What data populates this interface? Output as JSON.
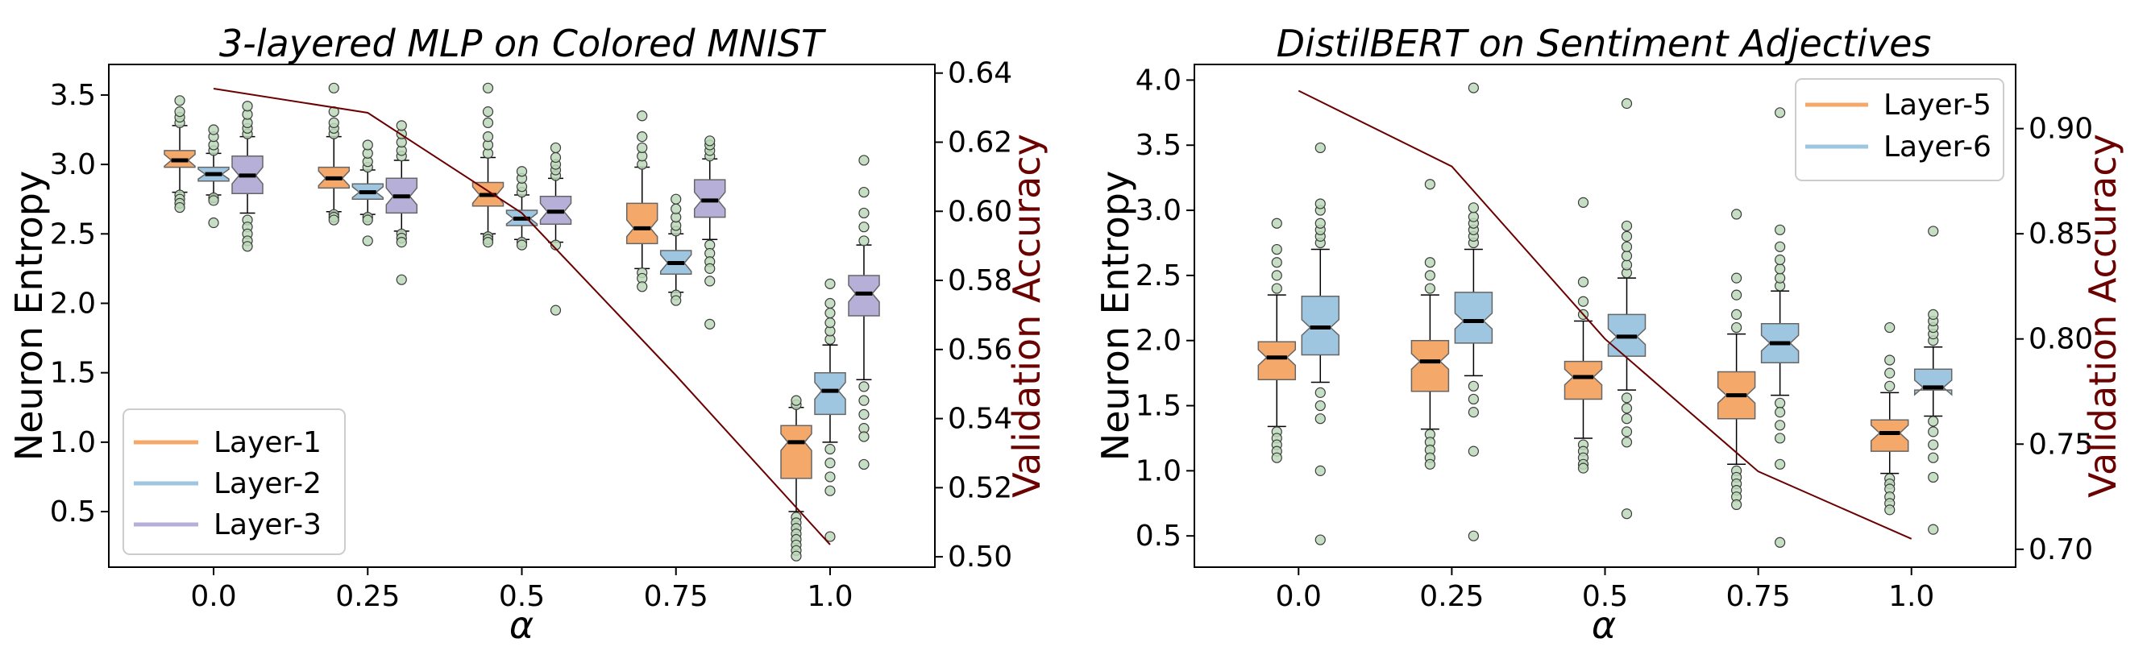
{
  "chart_data": [
    {
      "type": "box",
      "title": "3-layered MLP on Colored MNIST",
      "xlabel": "α",
      "ylabel": "Neuron Entropy",
      "ylabel_right": "Validation Accuracy",
      "categories": [
        "0.0",
        "0.25",
        "0.5",
        "0.75",
        "1.0"
      ],
      "xlim": [
        -0.17,
        1.17
      ],
      "ylim": [
        0.1,
        3.72
      ],
      "ylim_right": [
        0.497,
        0.6425
      ],
      "yticks": [
        "0.5",
        "1.0",
        "1.5",
        "2.0",
        "2.5",
        "3.0",
        "3.5"
      ],
      "yticks_right": [
        "0.50",
        "0.52",
        "0.54",
        "0.56",
        "0.58",
        "0.60",
        "0.62",
        "0.64"
      ],
      "legend_position": "lower left",
      "series": [
        {
          "name": "Layer-1",
          "color": "#f4a86a",
          "boxes": [
            {
              "q1": 2.98,
              "median": 3.03,
              "q3": 3.1,
              "wlo": 2.8,
              "whi": 3.28,
              "outliers_lo": [
                2.78,
                2.75,
                2.72,
                2.69
              ],
              "outliers_hi": [
                3.3,
                3.34,
                3.38,
                3.46
              ]
            },
            {
              "q1": 2.83,
              "median": 2.9,
              "q3": 2.98,
              "wlo": 2.66,
              "whi": 3.2,
              "outliers_lo": [
                2.64,
                2.62,
                2.6
              ],
              "outliers_hi": [
                3.22,
                3.26,
                3.3,
                3.38,
                3.55
              ]
            },
            {
              "q1": 2.7,
              "median": 2.78,
              "q3": 2.87,
              "wlo": 2.5,
              "whi": 3.05,
              "outliers_lo": [
                2.48,
                2.46,
                2.44
              ],
              "outliers_hi": [
                3.08,
                3.14,
                3.2,
                3.3,
                3.38,
                3.55
              ]
            },
            {
              "q1": 2.43,
              "median": 2.54,
              "q3": 2.72,
              "wlo": 2.25,
              "whi": 2.98,
              "outliers_lo": [
                2.22,
                2.18,
                2.12
              ],
              "outliers_hi": [
                3.0,
                3.06,
                3.12,
                3.2,
                3.35
              ]
            },
            {
              "q1": 0.74,
              "median": 1.0,
              "q3": 1.12,
              "wlo": 0.5,
              "whi": 1.25,
              "outliers_lo": [
                0.46,
                0.42,
                0.38,
                0.34,
                0.3,
                0.26,
                0.22,
                0.18
              ],
              "outliers_hi": [
                1.27,
                1.3
              ]
            }
          ]
        },
        {
          "name": "Layer-2",
          "color": "#9ec6e0",
          "boxes": [
            {
              "q1": 2.88,
              "median": 2.93,
              "q3": 2.98,
              "wlo": 2.78,
              "whi": 3.08,
              "outliers_lo": [
                2.76,
                2.74,
                2.58
              ],
              "outliers_hi": [
                3.1,
                3.14,
                3.2,
                3.25
              ]
            },
            {
              "q1": 2.75,
              "median": 2.8,
              "q3": 2.86,
              "wlo": 2.64,
              "whi": 2.96,
              "outliers_lo": [
                2.62,
                2.6,
                2.45
              ],
              "outliers_hi": [
                2.98,
                3.02,
                3.08,
                3.14
              ]
            },
            {
              "q1": 2.56,
              "median": 2.61,
              "q3": 2.67,
              "wlo": 2.46,
              "whi": 2.78,
              "outliers_lo": [
                2.44,
                2.42
              ],
              "outliers_hi": [
                2.8,
                2.84,
                2.9,
                2.95
              ]
            },
            {
              "q1": 2.21,
              "median": 2.29,
              "q3": 2.38,
              "wlo": 2.08,
              "whi": 2.5,
              "outliers_lo": [
                2.06,
                2.02
              ],
              "outliers_hi": [
                2.52,
                2.56,
                2.62,
                2.68,
                2.75
              ]
            },
            {
              "q1": 1.2,
              "median": 1.37,
              "q3": 1.5,
              "wlo": 1.0,
              "whi": 1.7,
              "outliers_lo": [
                0.95,
                0.85,
                0.75,
                0.65,
                0.32
              ],
              "outliers_hi": [
                1.74,
                1.8,
                1.86,
                1.93,
                2.0,
                2.14
              ]
            }
          ]
        },
        {
          "name": "Layer-3",
          "color": "#b6b0d8",
          "boxes": [
            {
              "q1": 2.79,
              "median": 2.92,
              "q3": 3.06,
              "wlo": 2.65,
              "whi": 3.2,
              "outliers_lo": [
                2.6,
                2.55,
                2.5,
                2.45,
                2.41
              ],
              "outliers_hi": [
                3.22,
                3.26,
                3.3,
                3.36,
                3.42
              ]
            },
            {
              "q1": 2.65,
              "median": 2.77,
              "q3": 2.9,
              "wlo": 2.52,
              "whi": 3.03,
              "outliers_lo": [
                2.5,
                2.47,
                2.44,
                2.17
              ],
              "outliers_hi": [
                3.06,
                3.1,
                3.16,
                3.22,
                3.28
              ]
            },
            {
              "q1": 2.57,
              "median": 2.66,
              "q3": 2.77,
              "wlo": 2.44,
              "whi": 2.9,
              "outliers_lo": [
                2.42,
                1.95
              ],
              "outliers_hi": [
                2.92,
                2.96,
                3.0,
                3.05,
                3.12
              ]
            },
            {
              "q1": 2.62,
              "median": 2.74,
              "q3": 2.89,
              "wlo": 2.46,
              "whi": 3.04,
              "outliers_lo": [
                2.42,
                2.36,
                2.3,
                2.25,
                2.16,
                1.85
              ],
              "outliers_hi": [
                3.06,
                3.1,
                3.14,
                3.17
              ]
            },
            {
              "q1": 1.91,
              "median": 2.07,
              "q3": 2.2,
              "wlo": 1.45,
              "whi": 2.42,
              "outliers_lo": [
                1.4,
                1.3,
                1.2,
                1.1,
                1.04,
                0.84
              ],
              "outliers_hi": [
                2.45,
                2.55,
                2.65,
                2.8,
                3.03
              ]
            }
          ]
        }
      ],
      "accuracy_line": {
        "color": "#6b0000",
        "x": [
          0.0,
          0.25,
          0.5,
          0.75,
          1.0
        ],
        "y": [
          0.6355,
          0.6285,
          0.5995,
          0.5525,
          0.5035
        ]
      }
    },
    {
      "type": "box",
      "title": "DistilBERT on Sentiment Adjectives",
      "xlabel": "α",
      "ylabel": "Neuron Entropy",
      "ylabel_right": "Validation Accuracy",
      "categories": [
        "0.0",
        "0.25",
        "0.5",
        "0.75",
        "1.0"
      ],
      "xlim": [
        -0.17,
        1.17
      ],
      "ylim": [
        0.26,
        4.12
      ],
      "ylim_right": [
        0.6915,
        0.9305
      ],
      "yticks": [
        "0.5",
        "1.0",
        "1.5",
        "2.0",
        "2.5",
        "3.0",
        "3.5",
        "4.0"
      ],
      "yticks_right": [
        "0.70",
        "0.75",
        "0.80",
        "0.85",
        "0.90"
      ],
      "legend_position": "upper right",
      "series": [
        {
          "name": "Layer-5",
          "color": "#f4a86a",
          "boxes": [
            {
              "q1": 1.7,
              "median": 1.87,
              "q3": 1.99,
              "wlo": 1.34,
              "whi": 2.35,
              "outliers_lo": [
                1.3,
                1.25,
                1.2,
                1.15,
                1.1
              ],
              "outliers_hi": [
                2.4,
                2.5,
                2.6,
                2.7,
                2.9
              ]
            },
            {
              "q1": 1.61,
              "median": 1.84,
              "q3": 2.0,
              "wlo": 1.32,
              "whi": 2.35,
              "outliers_lo": [
                1.28,
                1.22,
                1.16,
                1.1,
                1.05
              ],
              "outliers_hi": [
                2.4,
                2.5,
                2.6,
                3.2
              ]
            },
            {
              "q1": 1.55,
              "median": 1.72,
              "q3": 1.84,
              "wlo": 1.25,
              "whi": 2.15,
              "outliers_lo": [
                1.2,
                1.15,
                1.1,
                1.05,
                1.02
              ],
              "outliers_hi": [
                2.2,
                2.3,
                2.45,
                3.06
              ]
            },
            {
              "q1": 1.4,
              "median": 1.58,
              "q3": 1.76,
              "wlo": 1.05,
              "whi": 2.05,
              "outliers_lo": [
                1.0,
                0.95,
                0.9,
                0.85,
                0.8,
                0.74
              ],
              "outliers_hi": [
                2.1,
                2.2,
                2.35,
                2.48,
                2.97
              ]
            },
            {
              "q1": 1.15,
              "median": 1.29,
              "q3": 1.39,
              "wlo": 0.98,
              "whi": 1.6,
              "outliers_lo": [
                0.94,
                0.9,
                0.86,
                0.8,
                0.75,
                0.7
              ],
              "outliers_hi": [
                1.65,
                1.75,
                1.85,
                2.1
              ]
            }
          ]
        },
        {
          "name": "Layer-6",
          "color": "#9ec6e0",
          "boxes": [
            {
              "q1": 1.89,
              "median": 2.1,
              "q3": 2.34,
              "wlo": 1.68,
              "whi": 2.7,
              "outliers_lo": [
                1.6,
                1.5,
                1.4,
                1.0,
                0.47
              ],
              "outliers_hi": [
                2.75,
                2.8,
                2.85,
                2.9,
                3.0,
                3.05,
                3.48
              ]
            },
            {
              "q1": 1.98,
              "median": 2.15,
              "q3": 2.37,
              "wlo": 1.73,
              "whi": 2.7,
              "outliers_lo": [
                1.65,
                1.55,
                1.45,
                1.15,
                0.5
              ],
              "outliers_hi": [
                2.75,
                2.8,
                2.85,
                2.9,
                2.95,
                3.02,
                3.94
              ]
            },
            {
              "q1": 1.88,
              "median": 2.03,
              "q3": 2.2,
              "wlo": 1.62,
              "whi": 2.48,
              "outliers_lo": [
                1.56,
                1.48,
                1.4,
                1.3,
                1.22,
                0.67
              ],
              "outliers_hi": [
                2.52,
                2.58,
                2.65,
                2.72,
                2.8,
                2.88,
                3.82
              ]
            },
            {
              "q1": 1.83,
              "median": 1.98,
              "q3": 2.13,
              "wlo": 1.58,
              "whi": 2.38,
              "outliers_lo": [
                1.52,
                1.45,
                1.35,
                1.25,
                1.05,
                0.45
              ],
              "outliers_hi": [
                2.42,
                2.48,
                2.55,
                2.62,
                2.72,
                2.85,
                3.75
              ]
            },
            {
              "q1": 1.62,
              "median": 1.64,
              "q3": 1.78,
              "wlo": 1.42,
              "whi": 1.95,
              "outliers_lo": [
                1.38,
                1.3,
                1.2,
                1.1,
                0.95,
                0.55
              ],
              "outliers_hi": [
                2.0,
                2.05,
                2.1,
                2.15,
                2.2,
                2.84
              ]
            }
          ]
        }
      ],
      "accuracy_line": {
        "color": "#6b0000",
        "x": [
          0.0,
          0.25,
          0.5,
          0.75,
          1.0
        ],
        "y": [
          0.918,
          0.882,
          0.8,
          0.737,
          0.705
        ]
      }
    }
  ]
}
